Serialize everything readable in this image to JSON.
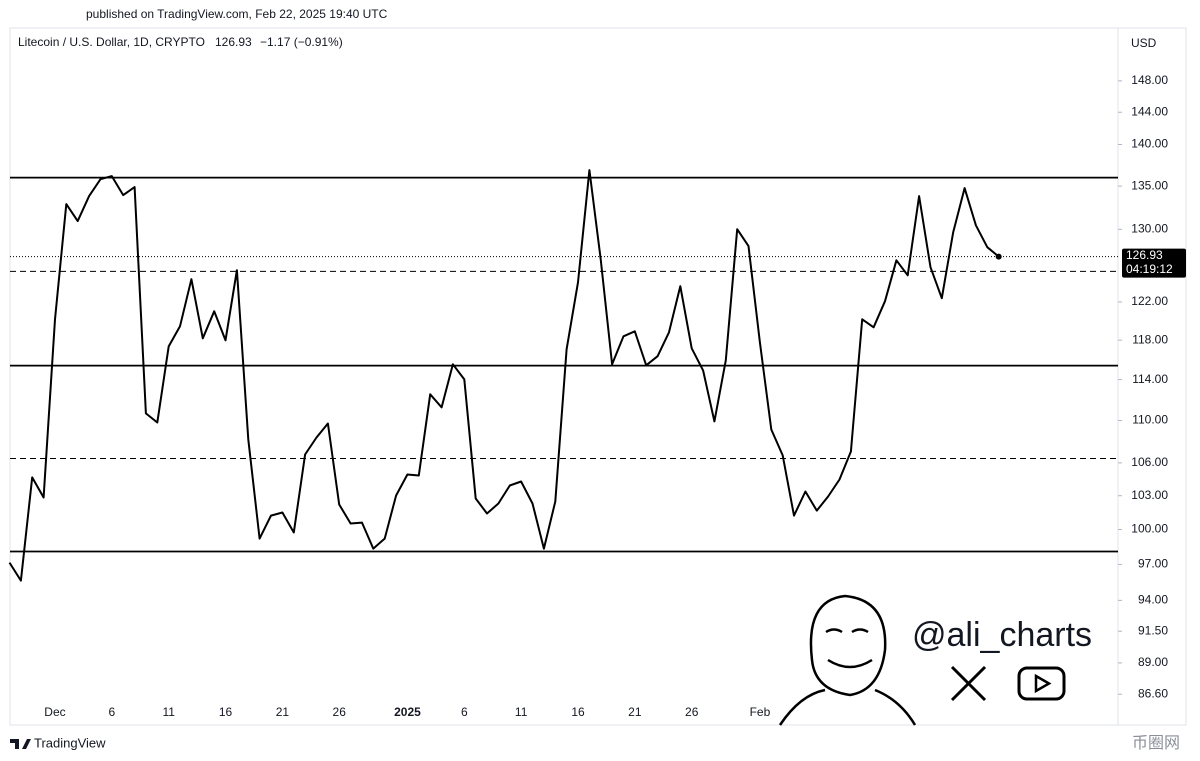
{
  "published": "published on TradingView.com, Feb 22, 2025 19:40 UTC",
  "symbol": "Litecoin / U.S. Dollar, 1D, CRYPTO",
  "change": "−1.17 (−0.91%)",
  "countdown": "04:19:12",
  "currency": "USD",
  "handle": "@ali_charts",
  "brand": "TradingView",
  "watermark": "币圈网",
  "chart_data": {
    "type": "line",
    "log_scale": true,
    "ylim": [
      84.3,
      155
    ],
    "yticks": [
      {
        "value": 148,
        "label": "148.00"
      },
      {
        "value": 144,
        "label": "144.00"
      },
      {
        "value": 140,
        "label": "140.00"
      },
      {
        "value": 135,
        "label": "135.00"
      },
      {
        "value": 130,
        "label": "130.00"
      },
      {
        "value": 122,
        "label": "122.00"
      },
      {
        "value": 118,
        "label": "118.00"
      },
      {
        "value": 114,
        "label": "114.00"
      },
      {
        "value": 110,
        "label": "110.00"
      },
      {
        "value": 106,
        "label": "106.00"
      },
      {
        "value": 103,
        "label": "103.00"
      },
      {
        "value": 100,
        "label": "100.00"
      },
      {
        "value": 97,
        "label": "97.00"
      },
      {
        "value": 94,
        "label": "94.00"
      },
      {
        "value": 91.5,
        "label": "91.50"
      },
      {
        "value": 89,
        "label": "89.00"
      },
      {
        "value": 86.6,
        "label": "86.60"
      }
    ],
    "categories": [
      null,
      null,
      null,
      null,
      "Dec",
      null,
      null,
      null,
      null,
      "6",
      null,
      null,
      null,
      null,
      "11",
      null,
      null,
      null,
      null,
      "16",
      null,
      null,
      null,
      null,
      "21",
      null,
      null,
      null,
      null,
      "26",
      null,
      null,
      null,
      null,
      null,
      "2025",
      null,
      null,
      null,
      null,
      "6",
      null,
      null,
      null,
      null,
      "11",
      null,
      null,
      null,
      null,
      "16",
      null,
      null,
      null,
      null,
      "21",
      null,
      null,
      null,
      null,
      "26",
      null,
      null,
      null,
      null,
      null,
      "Feb",
      null,
      null,
      null,
      null,
      null,
      null,
      null,
      null,
      null,
      null,
      null,
      null,
      null,
      null,
      null,
      null,
      null,
      null,
      null,
      null,
      null
    ],
    "series": [
      {
        "name": "Litecoin / U.S. Dollar",
        "color": "#000000",
        "values": [
          97.15,
          95.64,
          104.66,
          102.84,
          120.17,
          132.89,
          130.93,
          133.82,
          135.82,
          136.18,
          133.94,
          134.88,
          110.68,
          109.81,
          117.36,
          119.43,
          124.45,
          118.19,
          121.01,
          117.98,
          125.43,
          108.19,
          99.21,
          101.23,
          101.5,
          99.74,
          106.78,
          108.38,
          109.71,
          102.21,
          100.53,
          100.61,
          98.35,
          99.21,
          103.02,
          104.93,
          104.84,
          112.54,
          111.26,
          115.53,
          114.02,
          102.75,
          101.41,
          102.3,
          103.92,
          104.29,
          102.3,
          98.35,
          102.48,
          117.06,
          124.12,
          136.9,
          126.65,
          115.53,
          118.4,
          118.91,
          115.43,
          116.35,
          118.81,
          123.69,
          117.16,
          114.92,
          109.91,
          115.94,
          130.01,
          128.1,
          117.77,
          109.14,
          106.69,
          101.23,
          103.38,
          101.67,
          102.93,
          104.47,
          107.06,
          120.17,
          119.33,
          122.08,
          126.53,
          124.88,
          133.82,
          125.76,
          122.4,
          129.67,
          134.76,
          130.46,
          127.98,
          126.93
        ]
      }
    ],
    "levels": [
      {
        "value": 136.0,
        "style": "solid"
      },
      {
        "value": 125.3,
        "style": "dashed"
      },
      {
        "value": 115.4,
        "style": "solid"
      },
      {
        "value": 106.4,
        "style": "dashed"
      },
      {
        "value": 98.1,
        "style": "solid"
      }
    ]
  }
}
